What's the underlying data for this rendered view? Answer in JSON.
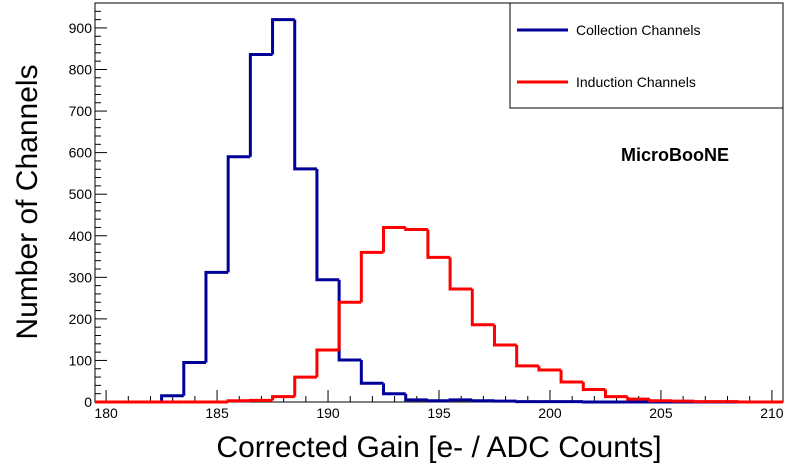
{
  "chart_data": {
    "type": "histogram",
    "xlabel": "Corrected Gain [e- / ADC Counts]",
    "ylabel": "Number of Channels",
    "xlim": [
      179.5,
      210.5
    ],
    "ylim": [
      0,
      960
    ],
    "x_ticks": [
      180,
      185,
      190,
      195,
      200,
      205,
      210
    ],
    "y_ticks": [
      0,
      100,
      200,
      300,
      400,
      500,
      600,
      700,
      800,
      900
    ],
    "annotation": "MicroBooNE",
    "legend": {
      "placement": "top-right",
      "entries": [
        {
          "label": "Collection Channels",
          "color": "#000099"
        },
        {
          "label": "Induction Channels",
          "color": "#ff0000"
        }
      ]
    },
    "bin_edges": [
      179.5,
      180.5,
      181.5,
      182.5,
      183.5,
      184.5,
      185.5,
      186.5,
      187.5,
      188.5,
      189.5,
      190.5,
      191.5,
      192.5,
      193.5,
      194.5,
      195.5,
      196.5,
      197.5,
      198.5,
      199.5,
      200.5,
      201.5,
      202.5,
      203.5,
      204.5,
      205.5,
      206.5,
      207.5,
      208.5,
      209.5,
      210.5
    ],
    "series": [
      {
        "name": "Collection Channels",
        "color": "#000099",
        "values": [
          0,
          0,
          0,
          15,
          95,
          312,
          590,
          836,
          920,
          561,
          294,
          101,
          45,
          20,
          5,
          3,
          5,
          3,
          2,
          1,
          1,
          1,
          0,
          0,
          0,
          0,
          0,
          0,
          0,
          0,
          0
        ]
      },
      {
        "name": "Induction Channels",
        "color": "#ff0000",
        "values": [
          0,
          0,
          0,
          0,
          0,
          0,
          3,
          4,
          13,
          60,
          125,
          240,
          360,
          420,
          415,
          348,
          272,
          186,
          137,
          87,
          77,
          48,
          30,
          13,
          7,
          3,
          2,
          1,
          1,
          0,
          0
        ]
      }
    ]
  }
}
